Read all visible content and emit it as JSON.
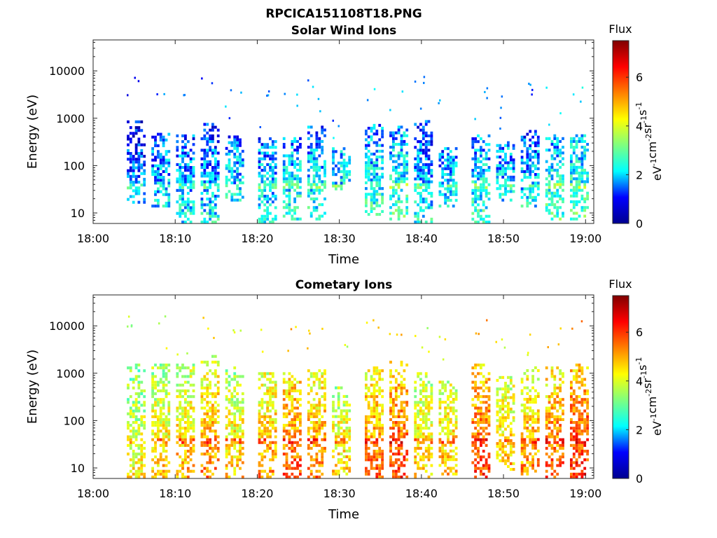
{
  "figure": {
    "filename": "RPCICA151108T18.PNG"
  },
  "colorbar": {
    "label": "Flux",
    "unit_parts": [
      "eV",
      "-1",
      "cm",
      "-2",
      "sr",
      "-1",
      "s",
      "-1"
    ],
    "range": [
      0,
      7.5
    ],
    "ticks": [
      "0",
      "2",
      "4",
      "6"
    ],
    "colormap": "jet",
    "stops": [
      "#00008f",
      "#0000ff",
      "#00ffff",
      "#7fff7f",
      "#ffff00",
      "#ff8000",
      "#ff0000",
      "#800000"
    ]
  },
  "chart_data": [
    {
      "type": "heatmap",
      "title": "Solar Wind Ions",
      "xlabel": "Time",
      "ylabel": "Energy (eV)",
      "xlim": [
        "18:00",
        "19:01"
      ],
      "ylim": [
        6,
        45000
      ],
      "yscale": "log",
      "x_ticks": [
        "18:00",
        "18:10",
        "18:20",
        "18:30",
        "18:40",
        "18:50",
        "19:00"
      ],
      "y_ticks": [
        "10",
        "100",
        "1000",
        "10000"
      ],
      "y_tick_values": [
        10,
        100,
        1000,
        10000
      ],
      "grid": false,
      "bursts": [
        {
          "time": "18:05",
          "e_lo": 18,
          "e_hi": 900,
          "flux": 1.6
        },
        {
          "time": "18:08",
          "e_lo": 15,
          "e_hi": 500,
          "flux": 1.9
        },
        {
          "time": "18:11",
          "e_lo": 6,
          "e_hi": 500,
          "flux": 1.9
        },
        {
          "time": "18:14",
          "e_lo": 6,
          "e_hi": 900,
          "flux": 1.9
        },
        {
          "time": "18:17",
          "e_lo": 20,
          "e_hi": 450,
          "flux": 2.1
        },
        {
          "time": "18:21",
          "e_lo": 6,
          "e_hi": 450,
          "flux": 2.0
        },
        {
          "time": "18:24",
          "e_lo": 8,
          "e_hi": 450,
          "flux": 2.2
        },
        {
          "time": "18:27",
          "e_lo": 8,
          "e_hi": 700,
          "flux": 2.1
        },
        {
          "time": "18:30",
          "e_lo": 30,
          "e_hi": 250,
          "flux": 2.2
        },
        {
          "time": "18:34",
          "e_lo": 10,
          "e_hi": 800,
          "flux": 2.3
        },
        {
          "time": "18:37",
          "e_lo": 8,
          "e_hi": 800,
          "flux": 2.4
        },
        {
          "time": "18:40",
          "e_lo": 6,
          "e_hi": 1000,
          "flux": 1.9
        },
        {
          "time": "18:43",
          "e_lo": 15,
          "e_hi": 300,
          "flux": 2.0
        },
        {
          "time": "18:47",
          "e_lo": 6,
          "e_hi": 500,
          "flux": 2.2
        },
        {
          "time": "18:50",
          "e_lo": 20,
          "e_hi": 350,
          "flux": 2.1
        },
        {
          "time": "18:53",
          "e_lo": 15,
          "e_hi": 650,
          "flux": 2.0
        },
        {
          "time": "18:56",
          "e_lo": 8,
          "e_hi": 500,
          "flux": 2.4
        },
        {
          "time": "18:59",
          "e_lo": 8,
          "e_hi": 500,
          "flux": 2.5
        }
      ]
    },
    {
      "type": "heatmap",
      "title": "Cometary Ions",
      "xlabel": "Time",
      "ylabel": "Energy (eV)",
      "xlim": [
        "18:00",
        "19:01"
      ],
      "ylim": [
        6,
        45000
      ],
      "yscale": "log",
      "x_ticks": [
        "18:00",
        "18:10",
        "18:20",
        "18:30",
        "18:40",
        "18:50",
        "19:00"
      ],
      "y_ticks": [
        "10",
        "100",
        "1000",
        "10000"
      ],
      "y_tick_values": [
        10,
        100,
        1000,
        10000
      ],
      "grid": false,
      "bursts": [
        {
          "time": "18:05",
          "e_lo": 6,
          "e_hi": 1800,
          "flux": 4.0
        },
        {
          "time": "18:08",
          "e_lo": 6,
          "e_hi": 1800,
          "flux": 4.4
        },
        {
          "time": "18:11",
          "e_lo": 6,
          "e_hi": 1600,
          "flux": 4.6
        },
        {
          "time": "18:14",
          "e_lo": 6,
          "e_hi": 2500,
          "flux": 5.0
        },
        {
          "time": "18:17",
          "e_lo": 6,
          "e_hi": 1500,
          "flux": 4.4
        },
        {
          "time": "18:21",
          "e_lo": 6,
          "e_hi": 1200,
          "flux": 4.8
        },
        {
          "time": "18:24",
          "e_lo": 6,
          "e_hi": 1200,
          "flux": 5.3
        },
        {
          "time": "18:27",
          "e_lo": 6,
          "e_hi": 1300,
          "flux": 5.0
        },
        {
          "time": "18:30",
          "e_lo": 8,
          "e_hi": 600,
          "flux": 4.3
        },
        {
          "time": "18:34",
          "e_lo": 6,
          "e_hi": 1500,
          "flux": 5.1
        },
        {
          "time": "18:37",
          "e_lo": 6,
          "e_hi": 2000,
          "flux": 5.5
        },
        {
          "time": "18:40",
          "e_lo": 6,
          "e_hi": 1200,
          "flux": 4.4
        },
        {
          "time": "18:43",
          "e_lo": 8,
          "e_hi": 800,
          "flux": 4.6
        },
        {
          "time": "18:47",
          "e_lo": 6,
          "e_hi": 1800,
          "flux": 5.6
        },
        {
          "time": "18:50",
          "e_lo": 10,
          "e_hi": 900,
          "flux": 4.6
        },
        {
          "time": "18:53",
          "e_lo": 8,
          "e_hi": 1500,
          "flux": 4.9
        },
        {
          "time": "18:56",
          "e_lo": 6,
          "e_hi": 1400,
          "flux": 5.3
        },
        {
          "time": "18:59",
          "e_lo": 6,
          "e_hi": 1600,
          "flux": 5.7
        }
      ]
    }
  ]
}
